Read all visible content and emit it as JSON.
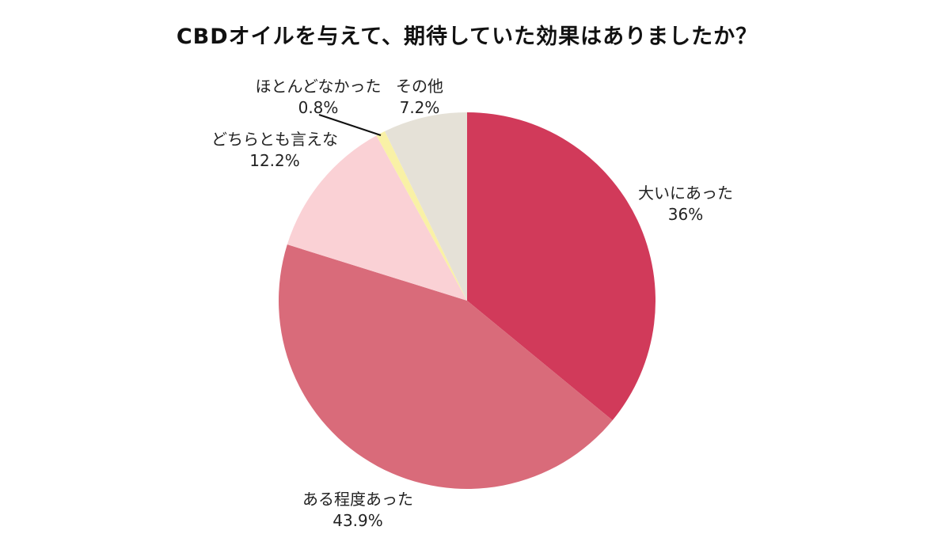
{
  "chart_data": {
    "type": "pie",
    "title": "CBDオイルを与えて、期待していた効果はありましたか？",
    "unit": "%",
    "start_angle_deg": 0,
    "direction": "clockwise",
    "legend": "none",
    "background_color": "#FFFFFF",
    "label_text_color": "#222222",
    "title_text_color": "#111111",
    "slices": [
      {
        "id": "ooini-atta",
        "label": "大いにあった",
        "value": 36,
        "pct_label": "36%",
        "color": "#D13A5A"
      },
      {
        "id": "aru-teido-atta",
        "label": "ある程度あった",
        "value": 43.9,
        "pct_label": "43.9%",
        "color": "#D96B7A"
      },
      {
        "id": "dochira-tomo-iena",
        "label": "どちらとも言えな",
        "value": 12.2,
        "pct_label": "12.2%",
        "color": "#FAD1D5"
      },
      {
        "id": "hotondo-nakatta",
        "label": "ほとんどなかった",
        "value": 0.8,
        "pct_label": "0.8%",
        "color": "#F9F1A6"
      },
      {
        "id": "sonota",
        "label": "その他",
        "value": 7.2,
        "pct_label": "7.2%",
        "color": "#E5E1D7"
      }
    ]
  }
}
